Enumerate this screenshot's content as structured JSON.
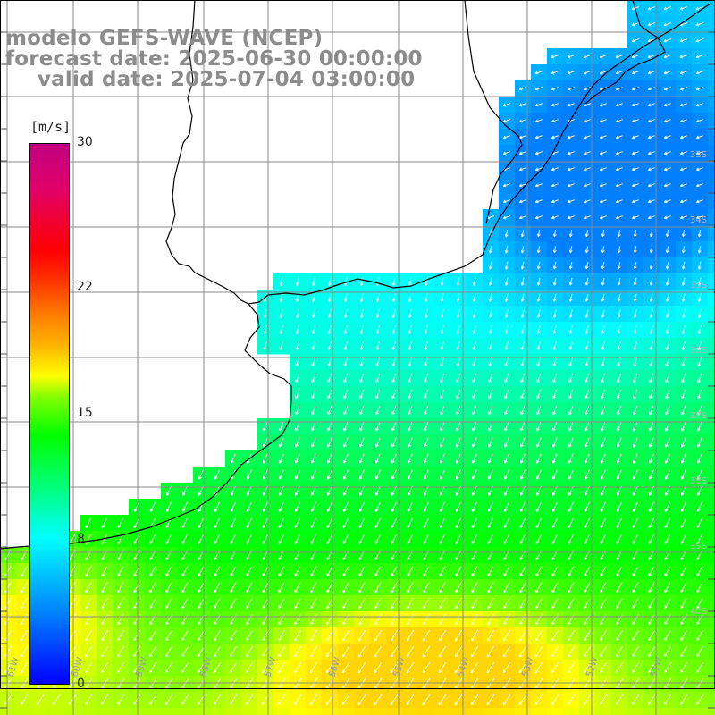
{
  "title": {
    "line1": "modelo GEFS-WAVE (NCEP)",
    "line2": "forecast date: 2025-06-30 00:00:00",
    "line3": "valid date: 2025-07-04 03:00:00"
  },
  "colorbar": {
    "unit": "[m/s]",
    "ticks": [
      {
        "value": 30,
        "label": "30"
      },
      {
        "value": 22,
        "label": "22"
      },
      {
        "value": 15,
        "label": "15"
      },
      {
        "value": 8,
        "label": "8"
      },
      {
        "value": 0,
        "label": "0"
      }
    ],
    "range": [
      0,
      30
    ],
    "colors": [
      "#0000ff",
      "#0080ff",
      "#00ffff",
      "#00ff80",
      "#00ff00",
      "#80ff00",
      "#ffff00",
      "#ff8000",
      "#ff0000",
      "#c0007f"
    ]
  },
  "map": {
    "lon_labels": [
      "61W",
      "60W",
      "59W",
      "58W",
      "57W",
      "56W",
      "55W",
      "54W",
      "53W",
      "52W",
      "51W"
    ],
    "lat_labels": [
      "33S",
      "34S",
      "35S",
      "36S",
      "37S",
      "38S",
      "39S",
      "40S"
    ],
    "grid_color": "#8a8a8a",
    "coast_color": "#000000",
    "arrow_color": "#ffffff"
  }
}
